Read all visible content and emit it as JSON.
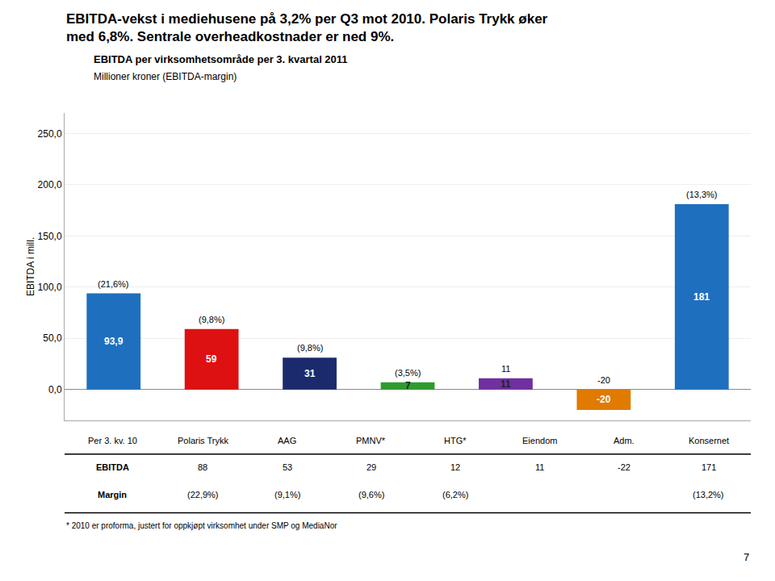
{
  "chart_data": {
    "type": "bar",
    "title": "EBITDA-vekst i mediehusene på 3,2% per Q3 mot 2010. Polaris Trykk øker\nmed 6,8%. Sentrale overheadkostnader er ned 9%.",
    "subtitle": "EBITDA per virksomhetsområde per 3. kvartal 2011\nMillioner kroner (EBITDA-margin)",
    "categories": [
      "Polaris Trykk",
      "AAG",
      "PMNV*",
      "HTG*",
      "Eiendom",
      "Adm.",
      "Konsernet"
    ],
    "values": [
      93.9,
      59,
      31,
      7,
      11,
      -20,
      181
    ],
    "value_labels": [
      "93,9",
      "59",
      "31",
      "7",
      "11",
      "-20",
      "181"
    ],
    "data_labels": true,
    "colors": [
      "#1F6FBF",
      "#DD1111",
      "#1A2A6C",
      "#2E9B2E",
      "#7030A0",
      "#E07B00",
      "#1F6FBF"
    ],
    "annotations": [
      "(21,6%)",
      "(9,8%)",
      "(9,8%)",
      "(3,5%)",
      "11",
      "-20",
      "(13,3%)"
    ],
    "ylim": [
      -30,
      270
    ],
    "yticks": [
      {
        "value": 0,
        "label": "0,0"
      },
      {
        "value": 50,
        "label": "50,0"
      },
      {
        "value": 100,
        "label": "100,0"
      },
      {
        "value": 150,
        "label": "150,0"
      },
      {
        "value": 200,
        "label": "200,0"
      },
      {
        "value": 250,
        "label": "250,0"
      }
    ],
    "ylabel": "EBITDA i mill.",
    "grid": true,
    "tick_labels": "y",
    "table": {
      "header": "Per 3. kv. 10",
      "rows": [
        {
          "label": "EBITDA",
          "values": [
            88,
            53,
            29,
            12,
            11,
            -22,
            171
          ]
        },
        {
          "label": "Margin",
          "values": [
            "(22,9%)",
            "(9,1%)",
            "(9,6%)",
            "(6,2%)",
            null,
            null,
            "(13,2%)"
          ]
        }
      ]
    },
    "footnote": "* 2010 er proforma, justert for oppkjøpt virksomhet under SMP og MediaNor",
    "page_number": "7"
  }
}
